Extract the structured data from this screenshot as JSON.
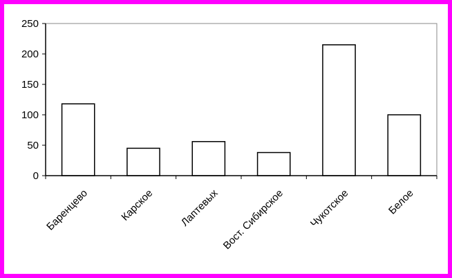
{
  "colors": {
    "border": "#ff00ff",
    "background": "#ffffff",
    "bar_fill": "#ffffff",
    "bar_stroke": "#000000",
    "axis": "#000000"
  },
  "chart_data": {
    "type": "bar",
    "categories": [
      "Баренцево",
      "Карское",
      "Лаптевых",
      "Вост. Сибирское",
      "Чукотское",
      "Белое"
    ],
    "values": [
      118,
      45,
      56,
      38,
      215,
      100
    ],
    "ylim": [
      0,
      250
    ],
    "yticks": [
      0,
      50,
      100,
      150,
      200,
      250
    ],
    "grid": false,
    "legend": "none"
  }
}
